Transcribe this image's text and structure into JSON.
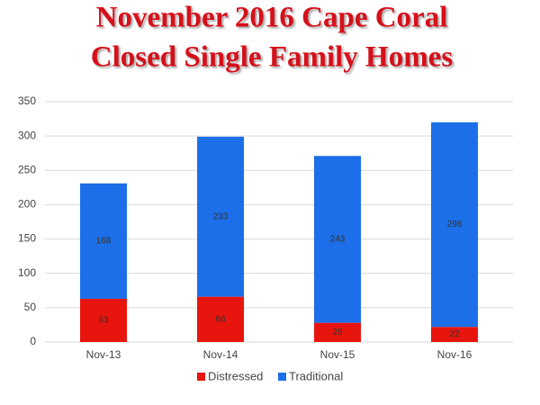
{
  "chart_data": {
    "type": "stacked_bar",
    "title": [
      "November 2016 Cape Coral",
      "Closed Single Family Homes"
    ],
    "categories": [
      "Nov-13",
      "Nov-14",
      "Nov-15",
      "Nov-16"
    ],
    "series": [
      {
        "name": "Distressed",
        "color": "#e8140e",
        "values": [
          63,
          66,
          28,
          22
        ]
      },
      {
        "name": "Traditional",
        "color": "#1c6fe8",
        "values": [
          168,
          233,
          243,
          298
        ]
      }
    ],
    "ylim": [
      0,
      350
    ],
    "yticks": [
      0,
      50,
      100,
      150,
      200,
      250,
      300,
      350
    ],
    "grid": true
  }
}
